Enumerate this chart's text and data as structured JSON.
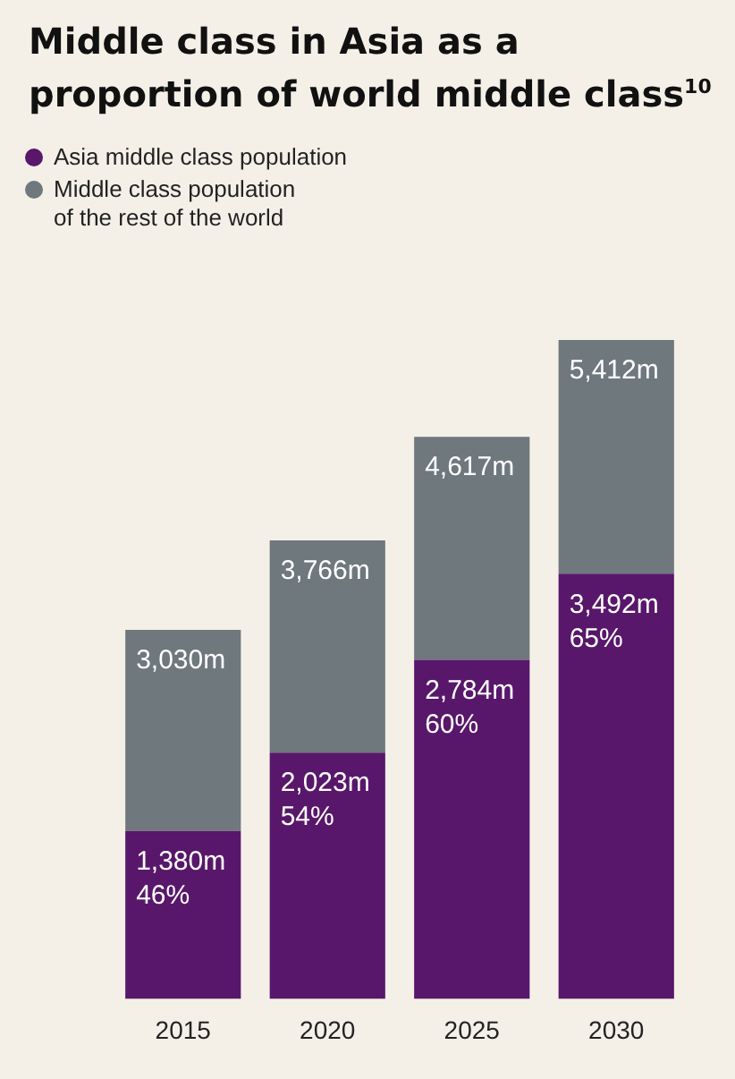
{
  "chart_data": {
    "type": "bar",
    "title": "Middle class in Asia as a proportion of world middle class$^{10}$",
    "categories": [
      "2015",
      "2020",
      "2025",
      "2030"
    ],
    "stacked": true,
    "legend": "top left",
    "marker": "circle",
    "grid": false,
    "series": [
      {
        "name": "Asia middle class population",
        "color": "#58176a",
        "values": [
          1380,
          2023,
          2784,
          3492
        ],
        "value_labels": [
          "1,380m",
          "2,023m",
          "2,784m",
          "3,492m"
        ]
      },
      {
        "name": "Middle class population\nof the rest of the world",
        "color": "#6e787d",
        "values": [
          1650,
          1743,
          1833,
          1920
        ]
      }
    ],
    "totals": [
      "3,030m",
      "3,766m",
      "4,617m",
      "5,412m"
    ],
    "annotations": [
      {
        "text": "46%",
        "x": "2015",
        "y": 1380
      },
      {
        "text": "54%",
        "x": "2020",
        "y": 2023
      },
      {
        "text": "60%",
        "x": "2025",
        "y": 2784
      },
      {
        "text": "65%",
        "x": "2030",
        "y": 3492
      }
    ]
  }
}
